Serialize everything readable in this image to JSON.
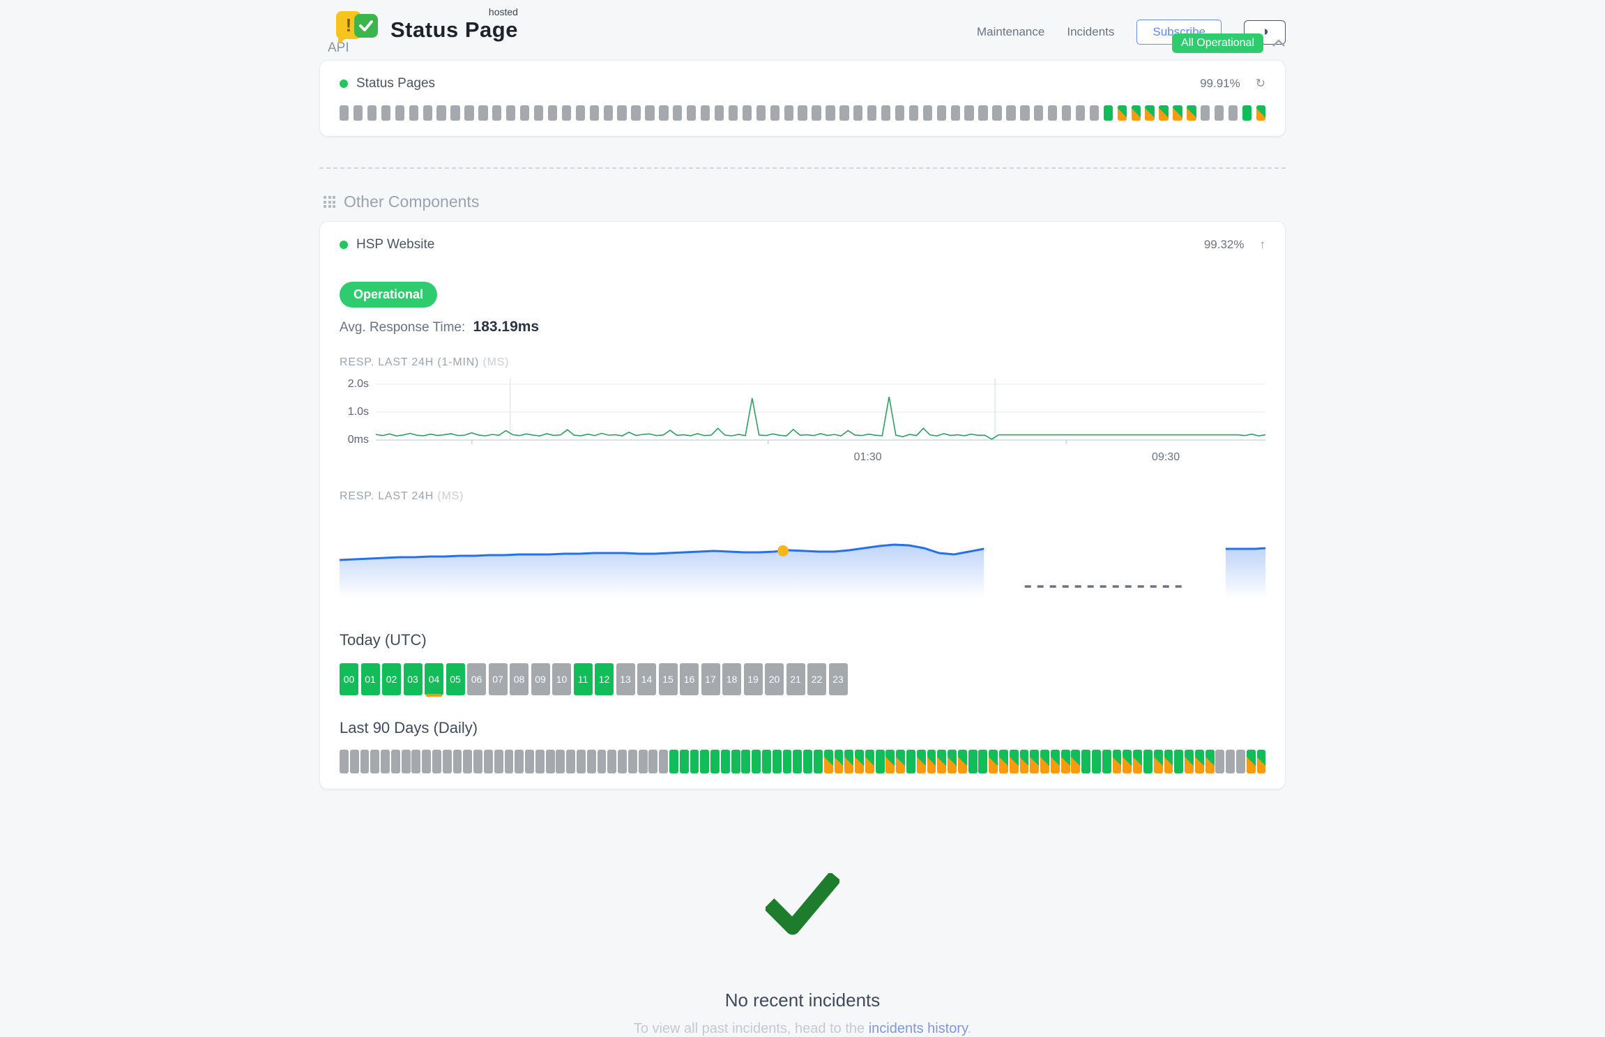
{
  "header": {
    "logo": {
      "brand": "Status Page",
      "superscript": "hosted",
      "warn_glyph": "!"
    },
    "nav": [
      {
        "label": "Maintenance"
      },
      {
        "label": "Incidents"
      }
    ],
    "subscribe_label": "Subscribe",
    "theme_toggle_glyph": "◑",
    "status_badge": "All Operational"
  },
  "api_section": {
    "title": "API",
    "component_name": "Status Pages",
    "uptime": "99.91%",
    "refresh_glyph": "↻",
    "bar_runs": [
      [
        "gray",
        55
      ],
      [
        "green",
        1
      ],
      [
        "split",
        6
      ],
      [
        "gray",
        3
      ],
      [
        "green",
        1
      ],
      [
        "split",
        1
      ]
    ]
  },
  "other_components": {
    "title": "Other Components",
    "component_name": "HSP Website",
    "uptime": "99.32%",
    "trend_glyph": "↑",
    "status_label": "Operational",
    "avg_response_label": "Avg. Response Time:",
    "avg_response_value": "183.19ms",
    "chart1_label": "RESP. LAST 24H (1-MIN)",
    "chart1_unit": "(MS)",
    "chart2_label": "RESP. LAST 24H",
    "chart2_unit": "(MS)",
    "today_title": "Today (UTC)",
    "hours": [
      {
        "label": "00",
        "state": "green"
      },
      {
        "label": "01",
        "state": "green"
      },
      {
        "label": "02",
        "state": "green"
      },
      {
        "label": "03",
        "state": "green"
      },
      {
        "label": "04",
        "state": "green",
        "marker": true
      },
      {
        "label": "05",
        "state": "green"
      },
      {
        "label": "06",
        "state": "gray"
      },
      {
        "label": "07",
        "state": "gray"
      },
      {
        "label": "08",
        "state": "gray"
      },
      {
        "label": "09",
        "state": "gray"
      },
      {
        "label": "10",
        "state": "gray"
      },
      {
        "label": "11",
        "state": "green"
      },
      {
        "label": "12",
        "state": "green"
      },
      {
        "label": "13",
        "state": "gray"
      },
      {
        "label": "14",
        "state": "gray"
      },
      {
        "label": "15",
        "state": "gray"
      },
      {
        "label": "16",
        "state": "gray"
      },
      {
        "label": "17",
        "state": "gray"
      },
      {
        "label": "18",
        "state": "gray"
      },
      {
        "label": "19",
        "state": "gray"
      },
      {
        "label": "20",
        "state": "gray"
      },
      {
        "label": "21",
        "state": "gray"
      },
      {
        "label": "22",
        "state": "gray"
      },
      {
        "label": "23",
        "state": "gray"
      }
    ],
    "last90_title": "Last 90 Days (Daily)",
    "day_runs": [
      [
        "gray",
        32
      ],
      [
        "green",
        15
      ],
      [
        "split",
        5
      ],
      [
        "green",
        1
      ],
      [
        "split",
        2
      ],
      [
        "green",
        1
      ],
      [
        "split",
        5
      ],
      [
        "green",
        2
      ],
      [
        "split",
        9
      ],
      [
        "green",
        3
      ],
      [
        "split",
        3
      ],
      [
        "green",
        1
      ],
      [
        "split",
        2
      ],
      [
        "green",
        1
      ],
      [
        "split",
        3
      ],
      [
        "gray",
        3
      ],
      [
        "split",
        2
      ]
    ]
  },
  "incidents": {
    "title": "No recent incidents",
    "subtitle_prefix": "To view all past incidents, head to the ",
    "link_text": "incidents history",
    "subtitle_suffix": "."
  },
  "colors": {
    "bar_green": "#12bd59",
    "bar_orange": "#f99b0f",
    "bar_gray": "#a5a8ad",
    "badge_green": "#2ecc6e",
    "line_green": "#2d9e5f",
    "line_blue": "#2570eb",
    "marker_yellow": "#f6b51e",
    "link_blue": "#7e97dd"
  },
  "chart_data": [
    {
      "type": "line",
      "title": "RESP. LAST 24H (1-MIN)",
      "unit": "MS",
      "ylim": [
        0,
        2200
      ],
      "ytick_labels": [
        "2.0s",
        "1.0s",
        "0ms"
      ],
      "ytick_ms": [
        2000,
        1000,
        0
      ],
      "xticks": [
        {
          "label": "01:30",
          "pos": 0.553
        },
        {
          "label": "09:30",
          "pos": 0.888
        }
      ],
      "vgrid_pos": [
        0.151,
        0.696
      ],
      "axis_tick_pos": [
        0.108,
        0.441,
        0.776
      ],
      "grid": true,
      "legend": false,
      "line_color": "#2d9e5f",
      "values_ms": [
        200,
        160,
        220,
        150,
        180,
        240,
        170,
        155,
        210,
        165,
        190,
        230,
        160,
        175,
        260,
        180,
        150,
        200,
        170,
        340,
        190,
        160,
        220,
        175,
        150,
        230,
        165,
        185,
        370,
        170,
        155,
        210,
        160,
        240,
        175,
        190,
        150,
        280,
        165,
        200,
        220,
        160,
        180,
        350,
        170,
        190,
        155,
        230,
        160,
        175,
        420,
        180,
        150,
        200,
        160,
        1500,
        180,
        160,
        220,
        170,
        150,
        380,
        175,
        190,
        160,
        230,
        165,
        200,
        150,
        340,
        180,
        160,
        210,
        170,
        155,
        1550,
        170,
        120,
        200,
        160,
        420,
        180,
        150,
        230,
        165,
        190,
        155,
        210,
        170,
        175,
        30,
        185,
        185,
        185,
        185,
        185,
        185,
        185,
        185,
        185,
        185,
        185,
        185,
        185,
        185,
        185,
        185,
        185,
        185,
        185,
        185,
        185,
        185,
        185,
        185,
        185,
        185,
        185,
        185,
        185,
        185,
        185,
        185,
        185,
        185,
        185,
        185,
        160,
        210,
        150,
        190
      ]
    },
    {
      "type": "area",
      "title": "RESP. LAST 24H",
      "unit": "MS",
      "grid": false,
      "legend": false,
      "line_color": "#2570eb",
      "segments": [
        {
          "start": 0.0,
          "end": 0.696,
          "values_ms": [
            166,
            167,
            168,
            169,
            170,
            170,
            171,
            171,
            172,
            172,
            173,
            173,
            174,
            174,
            174,
            175,
            175,
            176,
            176,
            176,
            175,
            175,
            176,
            177,
            178,
            179,
            178,
            177,
            177,
            178,
            180,
            179,
            178,
            178,
            180,
            183,
            186,
            188,
            187,
            183,
            176,
            174,
            178,
            182
          ]
        },
        {
          "start": 0.957,
          "end": 1.0,
          "values_ms": [
            182,
            182,
            182,
            182,
            183
          ]
        }
      ],
      "gap_dash": {
        "start": 0.74,
        "end": 0.911
      },
      "marker": {
        "pos": 0.479,
        "color": "#f6b51e"
      }
    }
  ]
}
